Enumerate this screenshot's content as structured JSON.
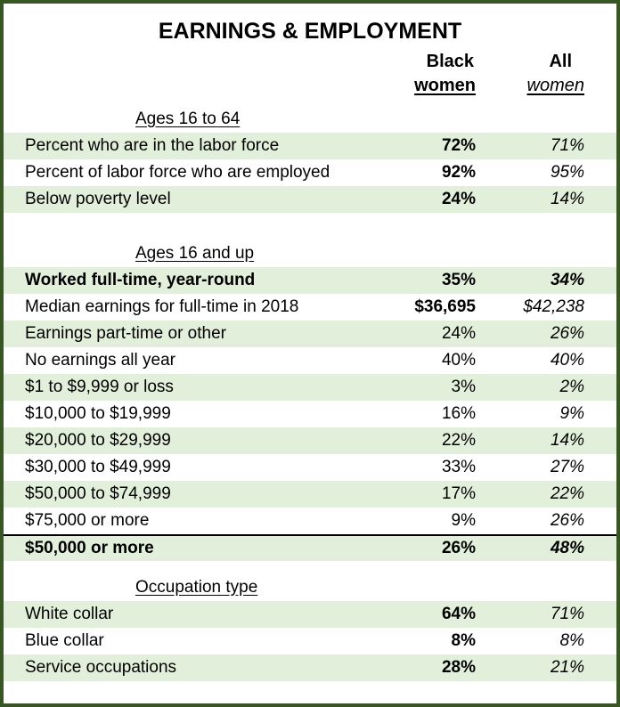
{
  "chart_data": {
    "type": "table",
    "title": "EARNINGS & EMPLOYMENT",
    "columns": [
      {
        "line1": "Black",
        "line2": "women"
      },
      {
        "line1": "All",
        "line2": "women"
      }
    ],
    "colors": {
      "frame_border": "#375623",
      "row_shade": "#e2efda",
      "separator_line": "#000000"
    },
    "sections": [
      {
        "header": "Ages 16 to 64",
        "rows": [
          {
            "label": "Percent who are in the labor force",
            "black_women": "72%",
            "all_women": "71%",
            "shaded": true,
            "black_bold": true,
            "row_bold": false,
            "top_border": false
          },
          {
            "label": "Percent of labor force who are employed",
            "black_women": "92%",
            "all_women": "95%",
            "shaded": false,
            "black_bold": true,
            "row_bold": false,
            "top_border": false
          },
          {
            "label": "Below poverty level",
            "black_women": "24%",
            "all_women": "14%",
            "shaded": true,
            "black_bold": true,
            "row_bold": false,
            "top_border": false
          }
        ]
      },
      {
        "header": "Ages 16 and up",
        "rows": [
          {
            "label": "Worked full-time, year-round",
            "black_women": "35%",
            "all_women": "34%",
            "shaded": true,
            "black_bold": true,
            "row_bold": true,
            "top_border": false
          },
          {
            "label": "Median earnings for full-time in 2018",
            "black_women": "$36,695",
            "all_women": "$42,238",
            "shaded": false,
            "black_bold": true,
            "row_bold": false,
            "top_border": false
          },
          {
            "label": "Earnings part-time or other",
            "black_women": "24%",
            "all_women": "26%",
            "shaded": true,
            "black_bold": false,
            "row_bold": false,
            "top_border": false
          },
          {
            "label": "No earnings all year",
            "black_women": "40%",
            "all_women": "40%",
            "shaded": false,
            "black_bold": false,
            "row_bold": false,
            "top_border": false
          },
          {
            "label": "$1 to $9,999 or loss",
            "black_women": "3%",
            "all_women": "2%",
            "shaded": true,
            "black_bold": false,
            "row_bold": false,
            "top_border": false
          },
          {
            "label": "$10,000 to $19,999",
            "black_women": "16%",
            "all_women": "9%",
            "shaded": false,
            "black_bold": false,
            "row_bold": false,
            "top_border": false
          },
          {
            "label": "$20,000 to $29,999",
            "black_women": "22%",
            "all_women": "14%",
            "shaded": true,
            "black_bold": false,
            "row_bold": false,
            "top_border": false
          },
          {
            "label": "$30,000 to $49,999",
            "black_women": "33%",
            "all_women": "27%",
            "shaded": false,
            "black_bold": false,
            "row_bold": false,
            "top_border": false
          },
          {
            "label": "$50,000 to $74,999",
            "black_women": "17%",
            "all_women": "22%",
            "shaded": true,
            "black_bold": false,
            "row_bold": false,
            "top_border": false
          },
          {
            "label": "$75,000 or more",
            "black_women": "9%",
            "all_women": "26%",
            "shaded": false,
            "black_bold": false,
            "row_bold": false,
            "top_border": false
          },
          {
            "label": "$50,000 or more",
            "black_women": "26%",
            "all_women": "48%",
            "shaded": true,
            "black_bold": true,
            "row_bold": true,
            "top_border": true
          }
        ]
      },
      {
        "header": "Occupation type",
        "rows": [
          {
            "label": "White collar",
            "black_women": "64%",
            "all_women": "71%",
            "shaded": true,
            "black_bold": true,
            "row_bold": false,
            "top_border": false
          },
          {
            "label": "Blue collar",
            "black_women": "8%",
            "all_women": "8%",
            "shaded": false,
            "black_bold": true,
            "row_bold": false,
            "top_border": false
          },
          {
            "label": "Service occupations",
            "black_women": "28%",
            "all_women": "21%",
            "shaded": true,
            "black_bold": true,
            "row_bold": false,
            "top_border": false
          }
        ]
      }
    ]
  }
}
